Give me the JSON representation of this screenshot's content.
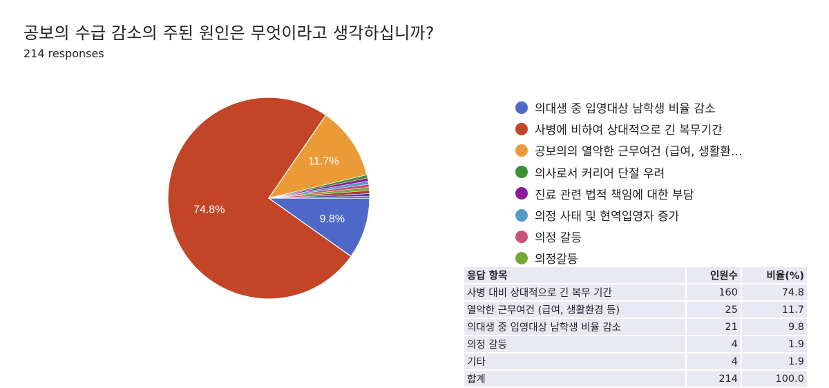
{
  "header": {
    "title": "공보의 수급 감소의 주된 원인은 무엇이라고 생각하십니까?",
    "responses": "214 responses"
  },
  "chart_data": {
    "type": "pie",
    "title": "공보의 수급 감소의 주된 원인은 무엇이라고 생각하십니까?",
    "subtitle": "214 responses",
    "legend_position": "right",
    "slices": [
      {
        "label": "의대생 중 입영대상 남학생 비율 감소",
        "value": 9.8,
        "color": "#4e68c7",
        "display": "9.8%"
      },
      {
        "label": "사병에 비하여 상대적으로 긴 복무기간",
        "value": 74.8,
        "color": "#c24527",
        "display": "74.8%"
      },
      {
        "label": "공보의의 열악한 근무여건 (급여, 생활환…",
        "value": 11.7,
        "color": "#ea9b38",
        "display": "11.7%"
      },
      {
        "label": "의사로서 커리어 단절 우려",
        "value": 0.5,
        "color": "#3d8f35",
        "display": ""
      },
      {
        "label": "진료 관련 법적 책임에 대한 부담",
        "value": 0.5,
        "color": "#8c1c96",
        "display": ""
      },
      {
        "label": "의정 사태 및 현역입영자 증가",
        "value": 0.5,
        "color": "#5599c6",
        "display": ""
      },
      {
        "label": "의정 갈등",
        "value": 0.5,
        "color": "#c9507a",
        "display": ""
      },
      {
        "label": "의정갈등",
        "value": 0.5,
        "color": "#74a935",
        "display": ""
      },
      {
        "label": "",
        "value": 0.5,
        "color": "#b33a3a",
        "display": ""
      },
      {
        "label": "",
        "value": 0.4,
        "color": "#38559e",
        "display": ""
      },
      {
        "label": "",
        "value": 0.3,
        "color": "#8e4d9a",
        "display": ""
      }
    ]
  },
  "legend": {
    "items": [
      {
        "label": "의대생 중 입영대상 남학생 비율 감소",
        "color": "#4e68c7"
      },
      {
        "label": "사병에 비하여 상대적으로 긴 복무기간",
        "color": "#c24527"
      },
      {
        "label": "공보의의 열악한 근무여건 (급여, 생활환…",
        "color": "#ea9b38"
      },
      {
        "label": "의사로서 커리어 단절 우려",
        "color": "#3d8f35"
      },
      {
        "label": "진료 관련 법적 책임에 대한 부담",
        "color": "#8c1c96"
      },
      {
        "label": "의정 사태 및 현역입영자 증가",
        "color": "#5599c6"
      },
      {
        "label": "의정 갈등",
        "color": "#c9507a"
      },
      {
        "label": "의정갈등",
        "color": "#74a935"
      }
    ]
  },
  "table": {
    "headers": [
      "응답 항목",
      "인원수",
      "비율(%)"
    ],
    "rows": [
      [
        "사병 대비 상대적으로 긴 복무 기간",
        "160",
        "74.8"
      ],
      [
        "열악한 근무여건 (급여, 생활환경 등)",
        "25",
        "11.7"
      ],
      [
        "의대생 중 입영대상 남학생 비율 감소",
        "21",
        "9.8"
      ],
      [
        "의정 갈등",
        "4",
        "1.9"
      ],
      [
        "기타",
        "4",
        "1.9"
      ],
      [
        "합계",
        "214",
        "100.0"
      ]
    ]
  }
}
